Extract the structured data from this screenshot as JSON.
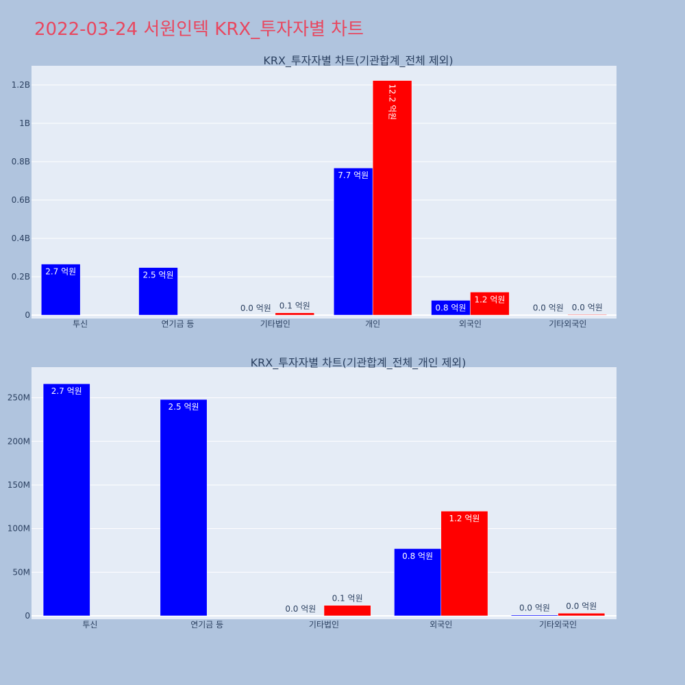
{
  "page_title": "2022-03-24 서원인텍 KRX_투자자별 차트",
  "chart_data": [
    {
      "type": "bar",
      "title": "KRX_투자자별 차트(기관합계_전체 제외)",
      "categories": [
        "투신",
        "연기금 등",
        "기타법인",
        "개인",
        "외국인",
        "기타외국인"
      ],
      "yticks": [
        "0",
        "0.2B",
        "0.4B",
        "0.6B",
        "0.8B",
        "1B",
        "1.2B"
      ],
      "ylim": [
        0,
        1300000000
      ],
      "tick_values": [
        0,
        200000000,
        400000000,
        600000000,
        800000000,
        1000000000,
        1200000000
      ],
      "grid": true,
      "series": [
        {
          "color": "#0000ff",
          "values": [
            266000000,
            248000000,
            0,
            767000000,
            77000000,
            1000000
          ],
          "labels": [
            "2.7 억원",
            "2.5 억원",
            "0.0 억원",
            "7.7 억원",
            "0.8 억원",
            "0.0 억원"
          ]
        },
        {
          "color": "#ff0000",
          "values": [
            0,
            0,
            12000000,
            1223000000,
            120000000,
            3000000
          ],
          "labels": [
            "",
            "",
            "0.1 억원",
            "12.2 억원",
            "1.2 억원",
            "0.0 억원"
          ]
        }
      ]
    },
    {
      "type": "bar",
      "title": "KRX_투자자별 차트(기관합계_전체_개인 제외)",
      "categories": [
        "투신",
        "연기금 등",
        "기타법인",
        "외국인",
        "기타외국인"
      ],
      "yticks": [
        "0",
        "50M",
        "100M",
        "150M",
        "200M",
        "250M"
      ],
      "ylim": [
        0,
        285000000
      ],
      "tick_values": [
        0,
        50000000,
        100000000,
        150000000,
        200000000,
        250000000
      ],
      "grid": true,
      "series": [
        {
          "color": "#0000ff",
          "values": [
            266000000,
            248000000,
            0,
            77000000,
            1000000
          ],
          "labels": [
            "2.7 억원",
            "2.5 억원",
            "0.0 억원",
            "0.8 억원",
            "0.0 억원"
          ]
        },
        {
          "color": "#ff0000",
          "values": [
            0,
            0,
            12000000,
            120000000,
            3000000
          ],
          "labels": [
            "",
            "",
            "0.1 억원",
            "1.2 억원",
            "0.0 억원"
          ]
        }
      ]
    }
  ]
}
